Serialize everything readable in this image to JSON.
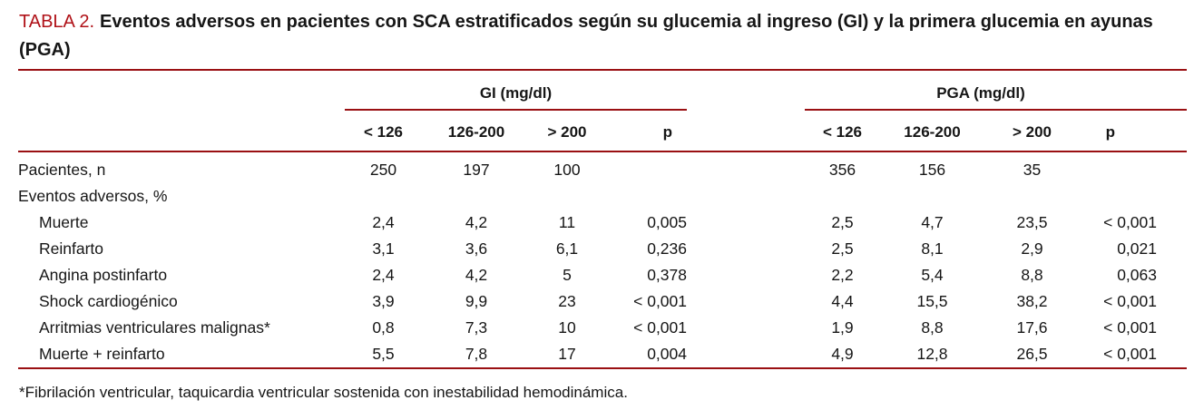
{
  "title": {
    "label": "TABLA 2.",
    "text": "Eventos adversos en pacientes con SCA estratificados según su glucemia al ingreso (GI) y la primera glucemia en ayunas (PGA)"
  },
  "colors": {
    "accent_red": "#b01218",
    "rule_red": "#9a1013",
    "text": "#161616"
  },
  "table": {
    "groups": [
      {
        "label": "GI (mg/dl)"
      },
      {
        "label": "PGA (mg/dl)"
      }
    ],
    "subheaders": [
      "< 126",
      "126-200",
      "> 200",
      "p"
    ],
    "rows": [
      {
        "label": "Pacientes, n",
        "indent": false,
        "gi": [
          "250",
          "197",
          "100",
          ""
        ],
        "pga": [
          "356",
          "156",
          "35",
          ""
        ]
      },
      {
        "label": "Eventos adversos, %",
        "indent": false,
        "gi": [
          "",
          "",
          "",
          ""
        ],
        "pga": [
          "",
          "",
          "",
          ""
        ]
      },
      {
        "label": "Muerte",
        "indent": true,
        "gi": [
          "2,4",
          "4,2",
          "11",
          "0,005"
        ],
        "pga": [
          "2,5",
          "4,7",
          "23,5",
          "< 0,001"
        ]
      },
      {
        "label": "Reinfarto",
        "indent": true,
        "gi": [
          "3,1",
          "3,6",
          "6,1",
          "0,236"
        ],
        "pga": [
          "2,5",
          "8,1",
          "2,9",
          "0,021"
        ]
      },
      {
        "label": "Angina postinfarto",
        "indent": true,
        "gi": [
          "2,4",
          "4,2",
          "5",
          "0,378"
        ],
        "pga": [
          "2,2",
          "5,4",
          "8,8",
          "0,063"
        ]
      },
      {
        "label": "Shock cardiogénico",
        "indent": true,
        "gi": [
          "3,9",
          "9,9",
          "23",
          "< 0,001"
        ],
        "pga": [
          "4,4",
          "15,5",
          "38,2",
          "< 0,001"
        ]
      },
      {
        "label": "Arritmias ventriculares malignas*",
        "indent": true,
        "gi": [
          "0,8",
          "7,3",
          "10",
          "< 0,001"
        ],
        "pga": [
          "1,9",
          "8,8",
          "17,6",
          "< 0,001"
        ]
      },
      {
        "label": "Muerte + reinfarto",
        "indent": true,
        "gi": [
          "5,5",
          "7,8",
          "17",
          "0,004"
        ],
        "pga": [
          "4,9",
          "12,8",
          "26,5",
          "< 0,001"
        ]
      }
    ],
    "footnote": "*Fibrilación ventricular, taquicardia ventricular sostenida con inestabilidad hemodinámica."
  }
}
